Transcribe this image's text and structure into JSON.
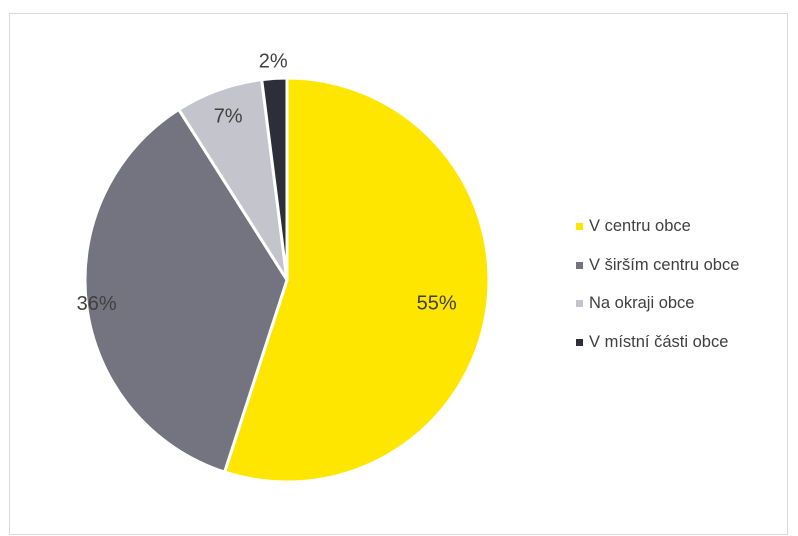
{
  "chart_data": {
    "type": "pie",
    "title": "",
    "categories": [
      "V centru obce",
      "V širším centru obce",
      "Na okraji obce",
      "V místní části obce"
    ],
    "values": [
      55,
      36,
      7,
      2
    ],
    "labels": [
      "55%",
      "36%",
      "7%",
      "2%"
    ],
    "colors": [
      "#FFE600",
      "#747480",
      "#C4C4CD",
      "#2E2E38"
    ],
    "label_colors": [
      "#404040",
      "#404040",
      "#404040",
      "#404040"
    ],
    "start": "12 o'clock",
    "direction": "clockwise",
    "legend_position": "right"
  }
}
